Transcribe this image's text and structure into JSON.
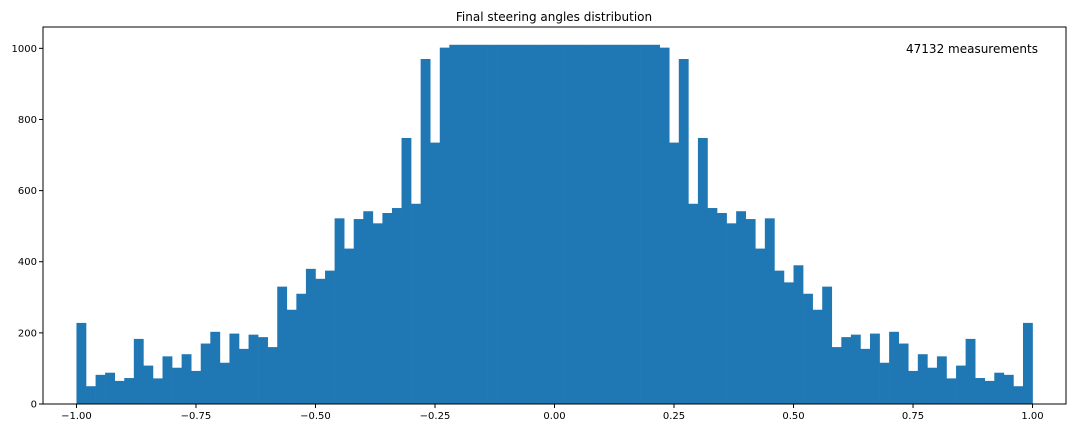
{
  "chart_data": {
    "type": "bar",
    "title": "Final steering angles distribution",
    "xlabel": "",
    "ylabel": "",
    "xlim": [
      -1.07,
      1.07
    ],
    "ylim": [
      0,
      1060
    ],
    "x_ticks": [
      -1.0,
      -0.75,
      -0.5,
      -0.25,
      0.0,
      0.25,
      0.5,
      0.75,
      1.0
    ],
    "x_tick_labels": [
      "−1.00",
      "−0.75",
      "−0.50",
      "−0.25",
      "0.00",
      "0.25",
      "0.50",
      "0.75",
      "1.00"
    ],
    "y_ticks": [
      0,
      200,
      400,
      600,
      800,
      1000
    ],
    "y_tick_labels": [
      "0",
      "200",
      "400",
      "600",
      "800",
      "1000"
    ],
    "grid": false,
    "color": "#1f77b4",
    "annotation": "47132 measurements",
    "bin_range": [
      -1.0,
      1.0
    ],
    "bin_count": 100,
    "values": [
      228,
      50,
      82,
      88,
      65,
      73,
      183,
      108,
      72,
      134,
      102,
      140,
      93,
      170,
      203,
      116,
      198,
      155,
      195,
      188,
      160,
      330,
      265,
      310,
      380,
      352,
      375,
      522,
      437,
      520,
      542,
      508,
      537,
      551,
      748,
      563,
      970,
      735,
      1002,
      1010,
      1010,
      1010,
      1010,
      1010,
      1010,
      1010,
      1010,
      1010,
      1010,
      1010,
      1010,
      1010,
      1010,
      1010,
      1010,
      1010,
      1010,
      1010,
      1010,
      1010,
      1010,
      1002,
      735,
      970,
      563,
      748,
      551,
      537,
      508,
      542,
      520,
      437,
      522,
      375,
      342,
      390,
      310,
      265,
      330,
      160,
      188,
      195,
      155,
      198,
      116,
      203,
      170,
      93,
      140,
      102,
      134,
      72,
      108,
      183,
      73,
      65,
      88,
      82,
      50,
      228
    ]
  }
}
